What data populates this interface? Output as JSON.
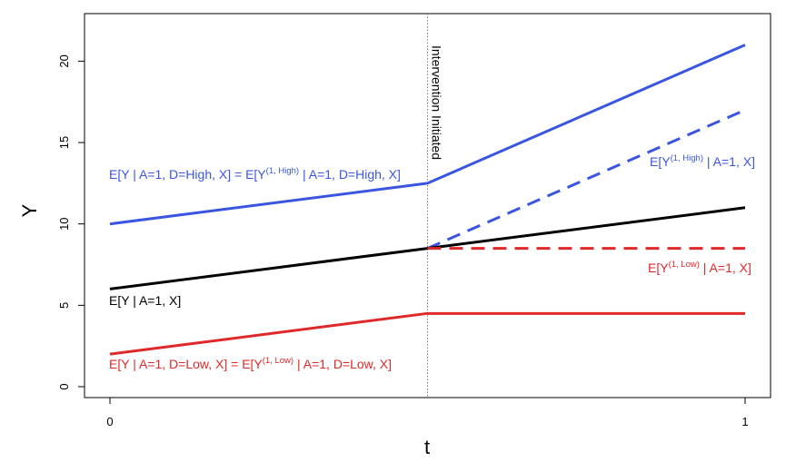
{
  "chart_data": {
    "type": "line",
    "xlabel": "t",
    "ylabel": "Y",
    "xlim": [
      0,
      1
    ],
    "ylim": [
      0,
      22
    ],
    "x_ticks": [
      "0",
      "1"
    ],
    "y_ticks": [
      "0",
      "5",
      "10",
      "15",
      "20"
    ],
    "grid": false,
    "vline": {
      "x": 0.5,
      "label": "Intervention Initiated"
    },
    "series": [
      {
        "color": "#3A56E0",
        "style": "solid",
        "x": [
          0,
          0.5,
          1
        ],
        "y": [
          10,
          12.5,
          21
        ]
      },
      {
        "color": "#3A56E0",
        "style": "dashed",
        "x": [
          0.5,
          1
        ],
        "y": [
          8.5,
          17
        ]
      },
      {
        "color": "#000000",
        "style": "solid",
        "x": [
          0,
          0.5,
          1
        ],
        "y": [
          6,
          8.5,
          11
        ]
      },
      {
        "color": "#E0282A",
        "style": "dashed",
        "x": [
          0.5,
          1
        ],
        "y": [
          8.5,
          8.5
        ]
      },
      {
        "color": "#E0282A",
        "style": "solid",
        "x": [
          0,
          0.5,
          1
        ],
        "y": [
          2,
          4.5,
          4.5
        ]
      }
    ],
    "annotations": {
      "blue_solid": {
        "pre": "E[Y | A=1, D=High, X] = E[Y",
        "sup": "(1, High)",
        "post": " | A=1, D=High, X]",
        "color": "#3A56E0"
      },
      "blue_dashed": {
        "pre": "E[Y",
        "sup": "(1, High)",
        "post": " | A=1, X]",
        "color": "#3A56E0"
      },
      "black": {
        "text": "E[Y | A=1, X]",
        "color": "#000000"
      },
      "red_dashed": {
        "pre": "E[Y",
        "sup": "(1, Low)",
        "post": " | A=1, X]",
        "color": "#E0282A"
      },
      "red_solid": {
        "pre": "E[Y | A=1, D=Low, X] = E[Y",
        "sup": "(1, Low)",
        "post": " | A=1, D=Low, X]",
        "color": "#E0282A"
      }
    }
  }
}
